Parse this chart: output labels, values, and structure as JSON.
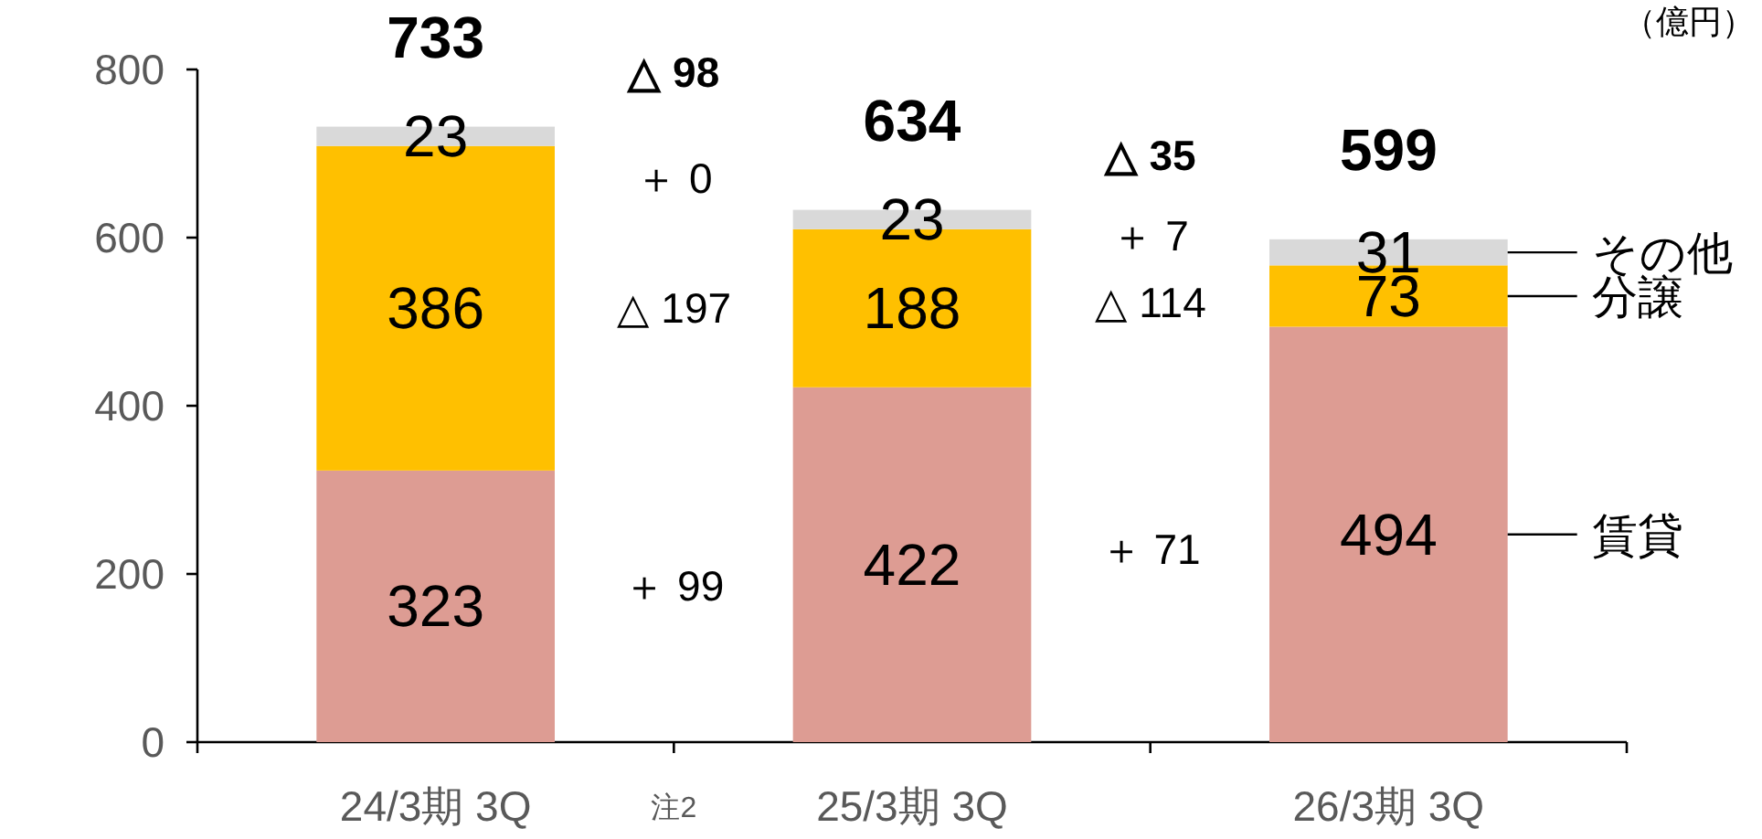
{
  "chart_data": {
    "type": "bar",
    "stacked": true,
    "categories": [
      "24/3期 3Q",
      "25/3期 3Q",
      "26/3期 3Q"
    ],
    "series": [
      {
        "name": "賃貸",
        "color": "#dd9c93",
        "values": [
          323,
          422,
          494
        ]
      },
      {
        "name": "分譲",
        "color": "#ffc000",
        "values": [
          386,
          188,
          73
        ]
      },
      {
        "name": "その他",
        "color": "#d9d9d9",
        "values": [
          23,
          23,
          31
        ]
      }
    ],
    "data_labels": true,
    "totals": [
      "733",
      "634",
      "599"
    ],
    "ylim": [
      0,
      800
    ],
    "yticks": [
      0,
      200,
      400,
      600,
      800
    ],
    "grid": false,
    "legend": "right",
    "annotations": [
      "△ 98",
      "＋ 0",
      "△ 197",
      "＋ 99",
      "△ 35",
      "＋ 7",
      "△ 114",
      "＋ 71",
      "注2",
      "（億円）"
    ]
  }
}
